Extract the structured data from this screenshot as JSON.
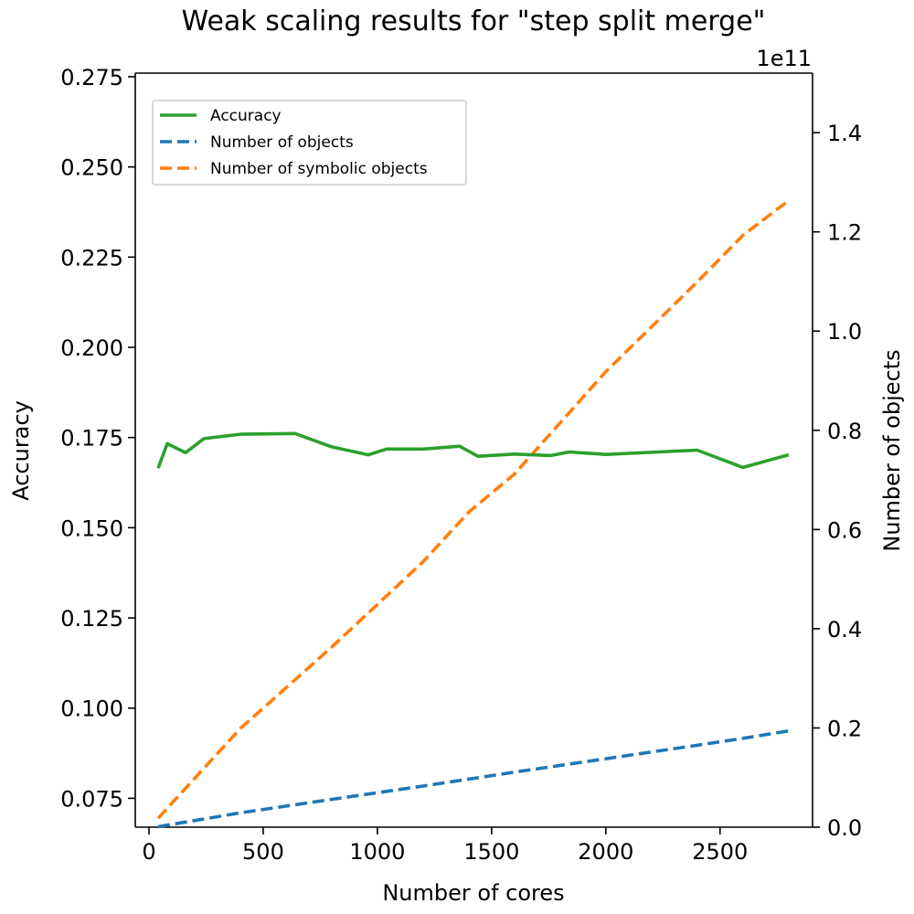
{
  "chart_data": {
    "type": "line",
    "title": "Weak scaling results for \"step split merge\"",
    "xlabel": "Number of cores",
    "ylabel_left": "Accuracy",
    "ylabel_right": "Number of objects",
    "right_axis_multiplier": "1e11",
    "xlim": [
      -60,
      2905
    ],
    "ylim_left": [
      0.067,
      0.276
    ],
    "ylim_right": [
      0.0,
      1.52
    ],
    "x_ticks": [
      0,
      500,
      1000,
      1500,
      2000,
      2500
    ],
    "x_tick_labels": [
      "0",
      "500",
      "1000",
      "1500",
      "2000",
      "2500"
    ],
    "y_left_ticks": [
      0.075,
      0.1,
      0.125,
      0.15,
      0.175,
      0.2,
      0.225,
      0.25,
      0.275
    ],
    "y_left_tick_labels": [
      "0.075",
      "0.100",
      "0.125",
      "0.150",
      "0.175",
      "0.200",
      "0.225",
      "0.250",
      "0.275"
    ],
    "y_right_ticks": [
      0.0,
      0.2,
      0.4,
      0.6,
      0.8,
      1.0,
      1.2,
      1.4
    ],
    "y_right_tick_labels": [
      "0.0",
      "0.2",
      "0.4",
      "0.6",
      "0.8",
      "1.0",
      "1.2",
      "1.4"
    ],
    "grid": false,
    "legend_position": "top-left",
    "series": [
      {
        "name": "Accuracy",
        "axis": "left",
        "style": "solid",
        "color": "#2ca02c",
        "x": [
          40,
          80,
          160,
          240,
          400,
          640,
          800,
          960,
          1040,
          1200,
          1360,
          1440,
          1600,
          1760,
          1840,
          2000,
          2400,
          2600,
          2800
        ],
        "y": [
          0.1665,
          0.1733,
          0.1708,
          0.1747,
          0.1759,
          0.1761,
          0.1724,
          0.1702,
          0.1718,
          0.1718,
          0.1726,
          0.1698,
          0.1704,
          0.17,
          0.171,
          0.1703,
          0.1715,
          0.1667,
          0.1702
        ]
      },
      {
        "name": "Number of objects",
        "axis": "right",
        "style": "dashed",
        "color": "#1f77b4",
        "x": [
          40,
          400,
          800,
          1200,
          1600,
          2000,
          2400,
          2600,
          2800
        ],
        "y": [
          0.001,
          0.029,
          0.056,
          0.083,
          0.111,
          0.138,
          0.165,
          0.179,
          0.194
        ]
      },
      {
        "name": "Number of symbolic objects",
        "axis": "right",
        "style": "dashed",
        "color": "#ff7f0e",
        "x": [
          40,
          400,
          800,
          1200,
          1400,
          1600,
          2000,
          2400,
          2600,
          2800
        ],
        "y": [
          0.018,
          0.199,
          0.363,
          0.535,
          0.635,
          0.712,
          0.918,
          1.099,
          1.193,
          1.263
        ]
      }
    ]
  }
}
